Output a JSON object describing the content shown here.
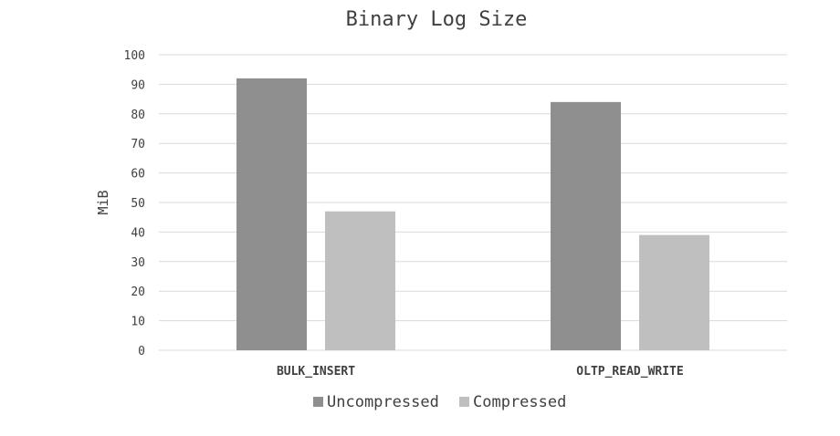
{
  "chart_data": {
    "type": "bar",
    "title": "Binary Log Size",
    "xlabel": "",
    "ylabel": "MiB",
    "ylim": [
      0,
      100
    ],
    "yticks": [
      0,
      10,
      20,
      30,
      40,
      50,
      60,
      70,
      80,
      90,
      100
    ],
    "grid": true,
    "legend_position": "bottom",
    "categories": [
      "BULK_INSERT",
      "OLTP_READ_WRITE"
    ],
    "series": [
      {
        "name": "Uncompressed",
        "values": [
          92,
          84
        ],
        "color": "#8f8f8f"
      },
      {
        "name": "Compressed",
        "values": [
          47,
          39
        ],
        "color": "#bfbfbf"
      }
    ]
  }
}
